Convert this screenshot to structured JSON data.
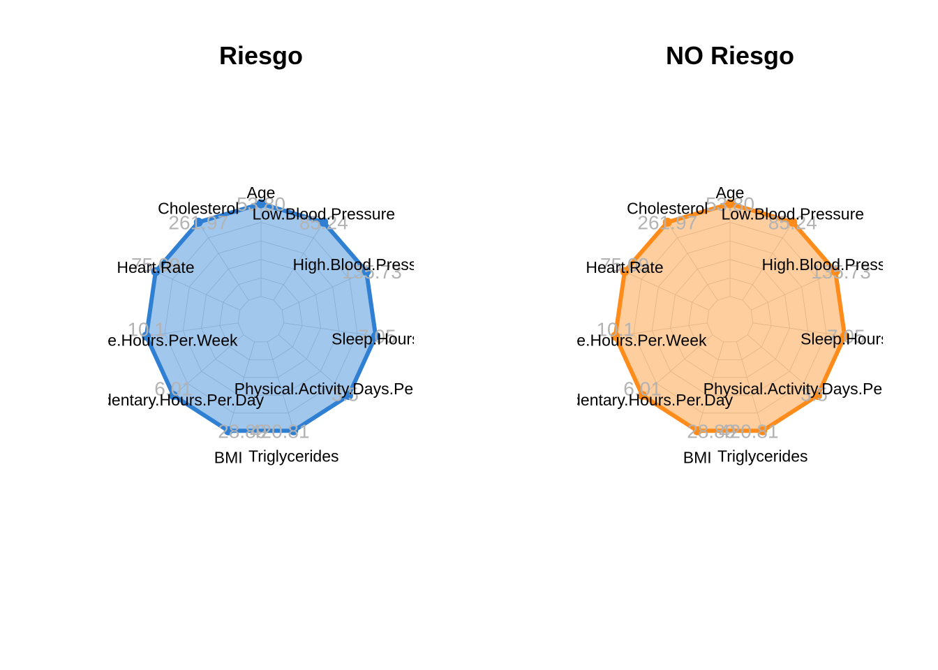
{
  "chart_data": [
    {
      "type": "radar",
      "title": "Riesgo",
      "color": "#2F7FD3",
      "fill": "#83B4E6",
      "categories": [
        "Age",
        "Low.Blood.Pressure",
        "High.Blood.Pressure",
        "Sleep.Hours",
        "Physical.Activity.Days.Per.Week",
        "Triglycerides",
        "BMI",
        "Sedentary.Hours.Per.Day",
        "Exercise.Hours.Per.Week",
        "Heart.Rate",
        "Cholesterol"
      ],
      "value_labels": [
        "53.80",
        "85.24",
        "135.73",
        "7.05",
        "3.5",
        "420.81",
        "28.89",
        "6.01",
        "10.1",
        "75.09",
        "261.97"
      ],
      "values": [
        1,
        1,
        1,
        1,
        1,
        1,
        1,
        1,
        1,
        1,
        1
      ],
      "rlim": [
        0,
        1
      ],
      "grid": true
    },
    {
      "type": "radar",
      "title": "NO Riesgo",
      "color": "#FF8C1A",
      "fill": "#FDBD7E",
      "categories": [
        "Age",
        "Low.Blood.Pressure",
        "High.Blood.Pressure",
        "Sleep.Hours",
        "Physical.Activity.Days.Per.Week",
        "Triglycerides",
        "BMI",
        "Sedentary.Hours.Per.Day",
        "Exercise.Hours.Per.Week",
        "Heart.Rate",
        "Cholesterol"
      ],
      "value_labels": [
        "53.80",
        "85.24",
        "135.73",
        "7.05",
        "3.5",
        "420.81",
        "28.89",
        "6.01",
        "10.1",
        "75.09",
        "261.97"
      ],
      "values": [
        1,
        1,
        1,
        1,
        1,
        1,
        1,
        1,
        1,
        1,
        1
      ],
      "rlim": [
        0,
        1
      ],
      "grid": true
    }
  ]
}
